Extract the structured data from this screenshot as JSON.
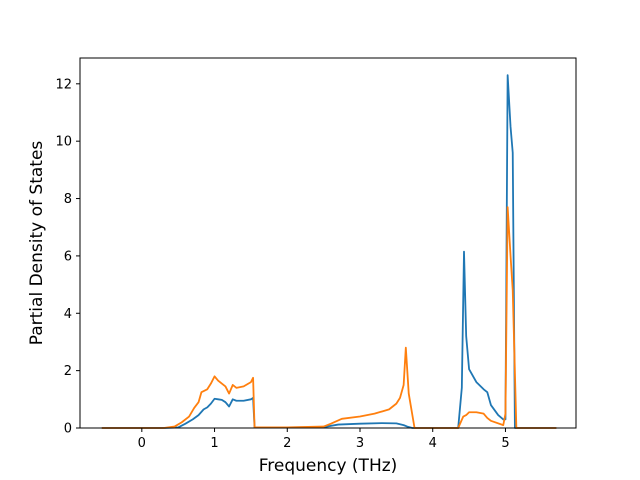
{
  "chart_data": {
    "type": "line",
    "title": "",
    "xlabel": "Frequency (THz)",
    "ylabel": "Partial Density of States",
    "xlim": [
      -0.85,
      5.97
    ],
    "ylim": [
      0,
      12.9
    ],
    "xticks": [
      0,
      1,
      2,
      3,
      4,
      5
    ],
    "yticks": [
      0,
      2,
      4,
      6,
      8,
      10,
      12
    ],
    "grid": false,
    "legend": "none",
    "series": [
      {
        "color": "#1f77b4",
        "x": [
          -0.55,
          0.0,
          0.3,
          0.5,
          0.6,
          0.7,
          0.78,
          0.85,
          0.9,
          0.95,
          1.0,
          1.05,
          1.1,
          1.15,
          1.2,
          1.25,
          1.3,
          1.4,
          1.5,
          1.53,
          1.55,
          2.0,
          2.5,
          2.7,
          3.0,
          3.3,
          3.5,
          3.6,
          3.65,
          3.72,
          4.0,
          4.35,
          4.4,
          4.43,
          4.46,
          4.5,
          4.6,
          4.7,
          4.75,
          4.8,
          4.9,
          4.97,
          5.0,
          5.03,
          5.07,
          5.1,
          5.13,
          5.5,
          5.7
        ],
        "y": [
          0,
          0,
          0,
          0.02,
          0.15,
          0.3,
          0.45,
          0.65,
          0.72,
          0.85,
          1.02,
          1.0,
          0.98,
          0.9,
          0.75,
          1.0,
          0.95,
          0.95,
          1.0,
          1.05,
          0.02,
          0.02,
          0.03,
          0.12,
          0.15,
          0.17,
          0.16,
          0.1,
          0.05,
          0.0,
          0.0,
          0.0,
          1.4,
          6.15,
          3.2,
          2.05,
          1.6,
          1.35,
          1.25,
          0.8,
          0.45,
          0.3,
          0.3,
          12.3,
          10.5,
          9.6,
          0.0,
          0.0,
          0.0
        ]
      },
      {
        "color": "#ff7f0e",
        "x": [
          -0.55,
          0.0,
          0.3,
          0.45,
          0.55,
          0.65,
          0.72,
          0.78,
          0.82,
          0.9,
          0.95,
          1.0,
          1.05,
          1.1,
          1.15,
          1.2,
          1.25,
          1.3,
          1.4,
          1.5,
          1.53,
          1.55,
          2.0,
          2.5,
          2.6,
          2.75,
          3.0,
          3.2,
          3.4,
          3.5,
          3.55,
          3.6,
          3.63,
          3.67,
          3.75,
          4.0,
          4.35,
          4.42,
          4.46,
          4.5,
          4.6,
          4.7,
          4.75,
          4.8,
          4.97,
          5.0,
          5.03,
          5.07,
          5.1,
          5.15,
          5.5,
          5.7
        ],
        "y": [
          0,
          0,
          0,
          0.05,
          0.2,
          0.4,
          0.7,
          0.9,
          1.25,
          1.35,
          1.55,
          1.8,
          1.65,
          1.55,
          1.45,
          1.2,
          1.5,
          1.4,
          1.45,
          1.6,
          1.75,
          0.02,
          0.02,
          0.05,
          0.15,
          0.32,
          0.4,
          0.5,
          0.65,
          0.85,
          1.05,
          1.5,
          2.8,
          1.2,
          0.0,
          0.0,
          0.0,
          0.4,
          0.45,
          0.55,
          0.55,
          0.5,
          0.35,
          0.25,
          0.1,
          0.5,
          7.7,
          6.0,
          4.8,
          0.0,
          0.0,
          0.0
        ]
      }
    ]
  }
}
